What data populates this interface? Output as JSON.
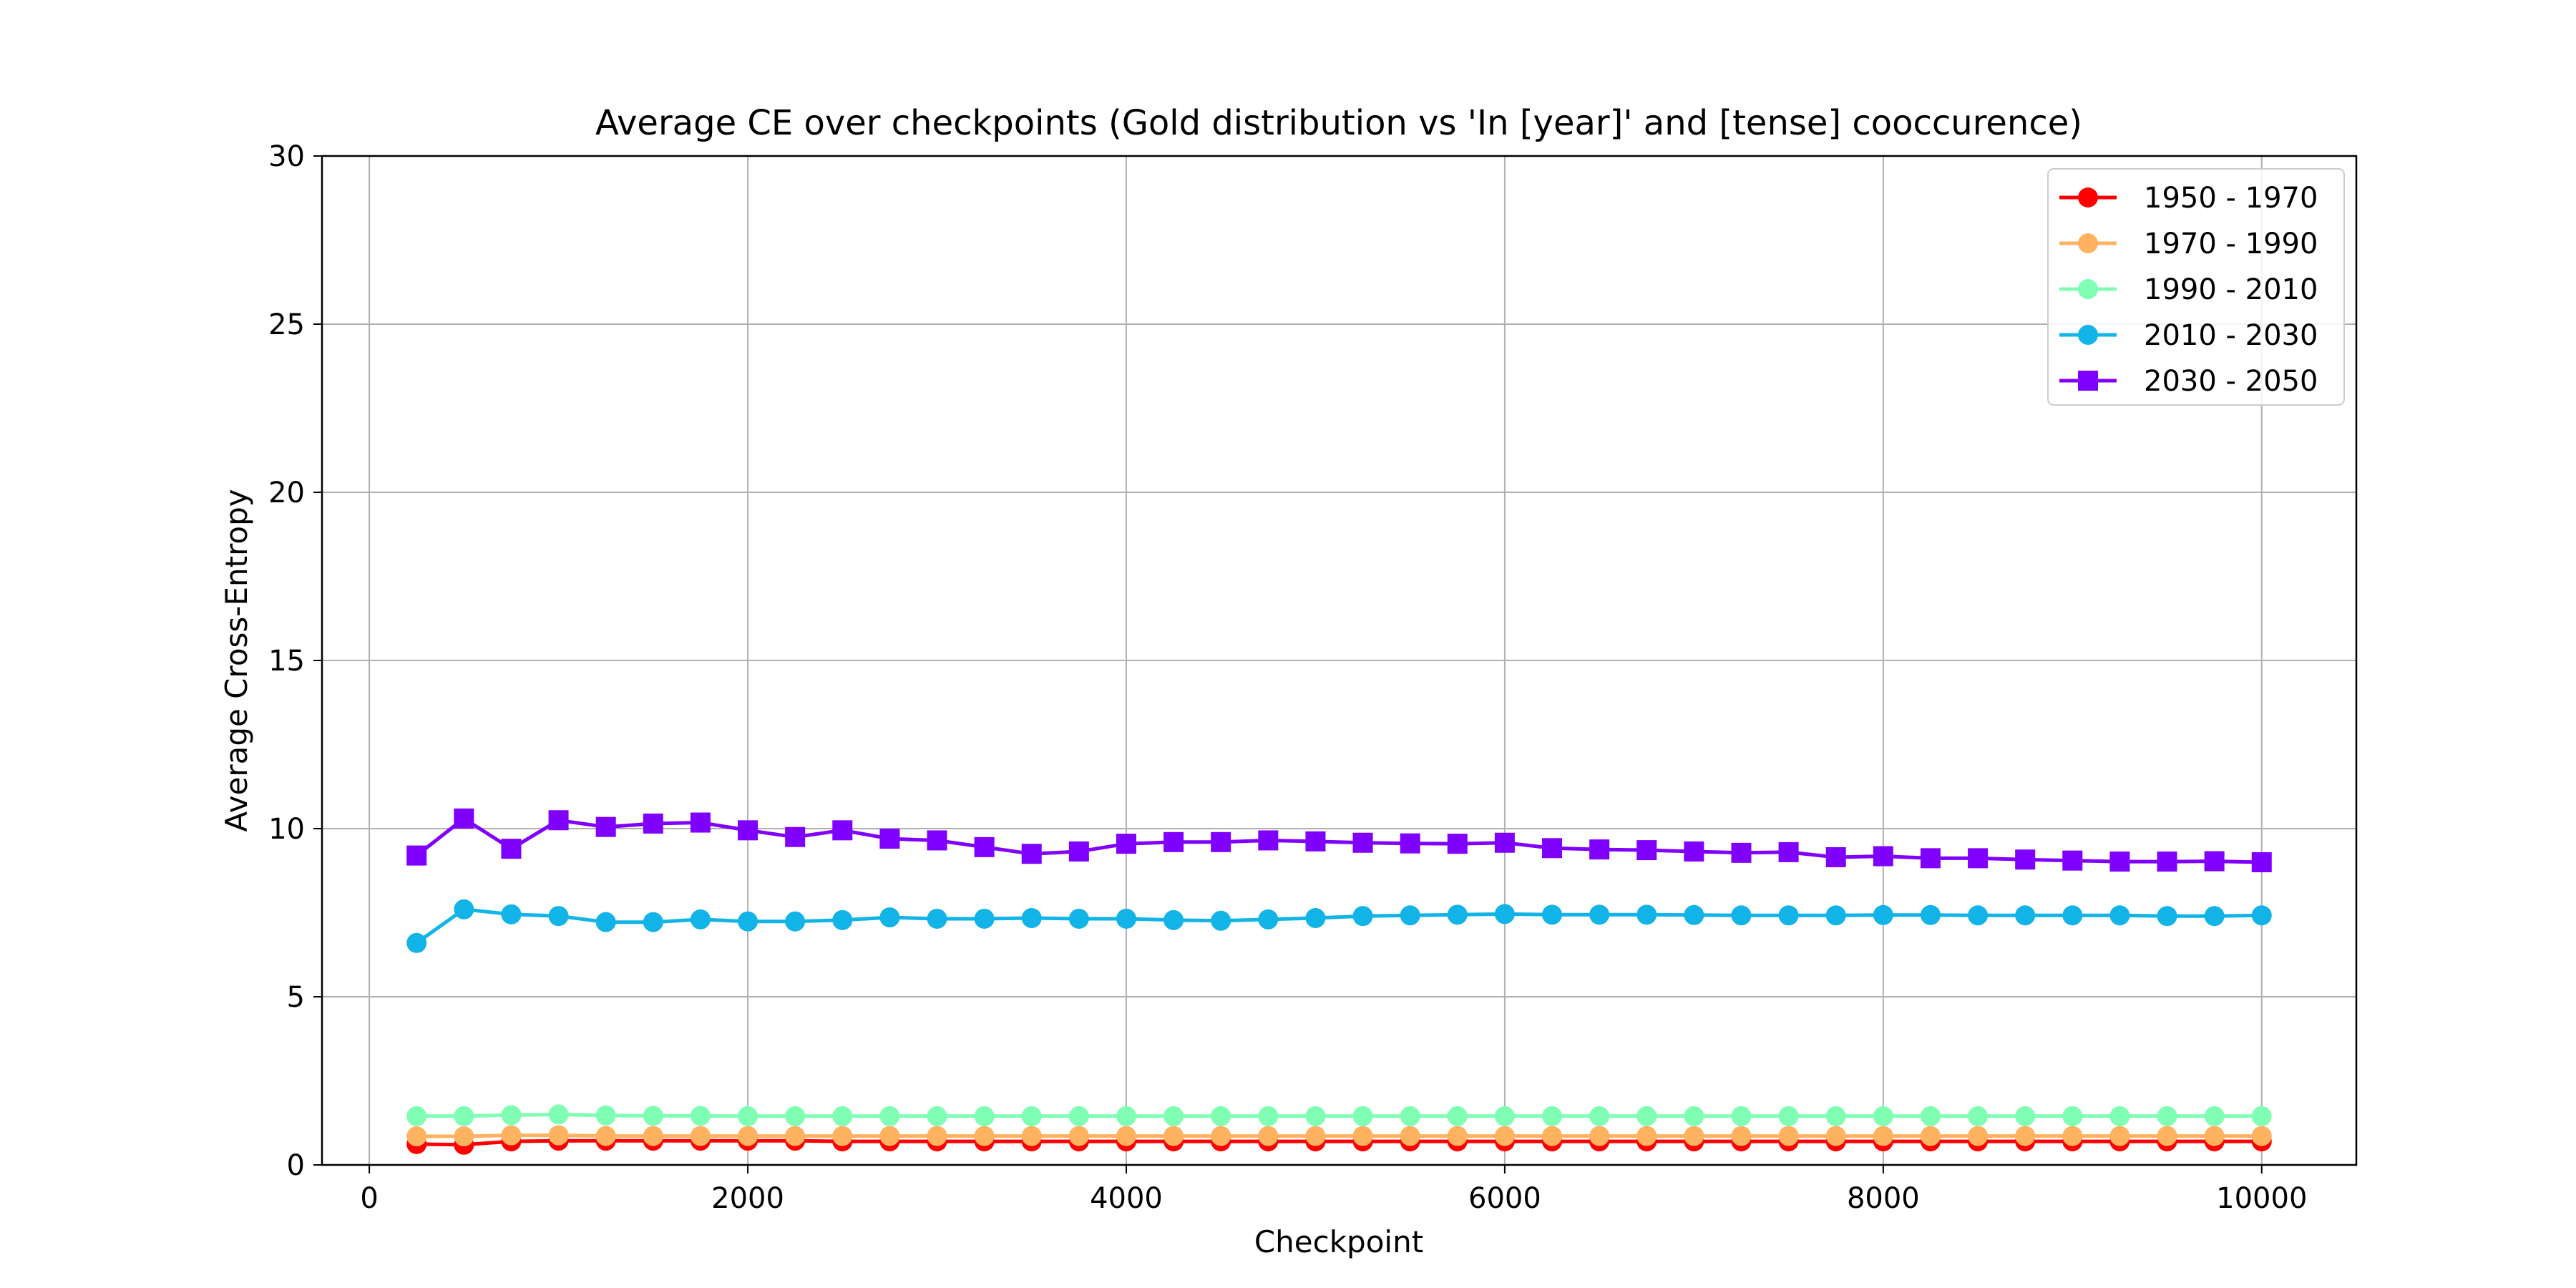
{
  "chart_data": {
    "type": "line",
    "title": "Average CE over checkpoints (Gold distribution vs 'In [year]' and [tense] cooccurence)",
    "xlabel": "Checkpoint",
    "ylabel": "Average Cross-Entropy",
    "xlim": [
      -250,
      10500
    ],
    "ylim": [
      0,
      30
    ],
    "xticks": [
      0,
      2000,
      4000,
      6000,
      8000,
      10000
    ],
    "yticks": [
      0,
      5,
      10,
      15,
      20,
      25,
      30
    ],
    "grid": true,
    "legend_position": "top-right",
    "x": [
      250,
      500,
      750,
      1000,
      1250,
      1500,
      1750,
      2000,
      2250,
      2500,
      2750,
      3000,
      3250,
      3500,
      3750,
      4000,
      4250,
      4500,
      4750,
      5000,
      5250,
      5500,
      5750,
      6000,
      6250,
      6500,
      6750,
      7000,
      7250,
      7500,
      7750,
      8000,
      8250,
      8500,
      8750,
      9000,
      9250,
      9500,
      9750,
      10000
    ],
    "series": [
      {
        "name": "1950 - 1970",
        "color": "#ff0000",
        "marker": "circle",
        "values": [
          0.62,
          0.6,
          0.7,
          0.72,
          0.72,
          0.72,
          0.72,
          0.72,
          0.72,
          0.7,
          0.7,
          0.7,
          0.7,
          0.7,
          0.7,
          0.7,
          0.7,
          0.7,
          0.7,
          0.7,
          0.7,
          0.7,
          0.7,
          0.7,
          0.7,
          0.7,
          0.7,
          0.7,
          0.7,
          0.7,
          0.7,
          0.7,
          0.7,
          0.7,
          0.7,
          0.7,
          0.7,
          0.7,
          0.7,
          0.7
        ]
      },
      {
        "name": "1970 - 1990",
        "color": "#ffb360",
        "marker": "circle",
        "values": [
          0.85,
          0.85,
          0.88,
          0.88,
          0.86,
          0.86,
          0.86,
          0.86,
          0.86,
          0.86,
          0.86,
          0.86,
          0.86,
          0.86,
          0.86,
          0.86,
          0.86,
          0.86,
          0.86,
          0.86,
          0.86,
          0.86,
          0.86,
          0.86,
          0.86,
          0.86,
          0.86,
          0.86,
          0.86,
          0.86,
          0.86,
          0.86,
          0.86,
          0.86,
          0.86,
          0.86,
          0.86,
          0.86,
          0.86,
          0.86
        ]
      },
      {
        "name": "1990 - 2010",
        "color": "#80ffb4",
        "marker": "circle",
        "values": [
          1.45,
          1.45,
          1.48,
          1.5,
          1.47,
          1.46,
          1.46,
          1.45,
          1.45,
          1.45,
          1.45,
          1.45,
          1.45,
          1.45,
          1.45,
          1.45,
          1.45,
          1.45,
          1.45,
          1.45,
          1.45,
          1.45,
          1.45,
          1.45,
          1.45,
          1.45,
          1.45,
          1.45,
          1.45,
          1.45,
          1.45,
          1.45,
          1.45,
          1.45,
          1.45,
          1.45,
          1.45,
          1.45,
          1.45,
          1.45
        ]
      },
      {
        "name": "2010 - 2030",
        "color": "#12b3e6",
        "marker": "circle",
        "values": [
          6.6,
          7.6,
          7.45,
          7.4,
          7.22,
          7.22,
          7.3,
          7.24,
          7.24,
          7.28,
          7.36,
          7.32,
          7.32,
          7.34,
          7.32,
          7.32,
          7.28,
          7.26,
          7.3,
          7.34,
          7.4,
          7.42,
          7.44,
          7.46,
          7.44,
          7.44,
          7.44,
          7.43,
          7.42,
          7.42,
          7.42,
          7.43,
          7.43,
          7.42,
          7.42,
          7.42,
          7.42,
          7.4,
          7.4,
          7.42
        ]
      },
      {
        "name": "2030 - 2050",
        "color": "#8000ff",
        "marker": "square",
        "values": [
          9.2,
          10.3,
          9.4,
          10.25,
          10.05,
          10.15,
          10.18,
          9.95,
          9.75,
          9.95,
          9.7,
          9.65,
          9.45,
          9.25,
          9.32,
          9.55,
          9.6,
          9.6,
          9.65,
          9.62,
          9.58,
          9.56,
          9.55,
          9.58,
          9.42,
          9.38,
          9.36,
          9.32,
          9.28,
          9.3,
          9.15,
          9.18,
          9.12,
          9.12,
          9.08,
          9.05,
          9.02,
          9.02,
          9.03,
          9.0
        ]
      }
    ]
  }
}
